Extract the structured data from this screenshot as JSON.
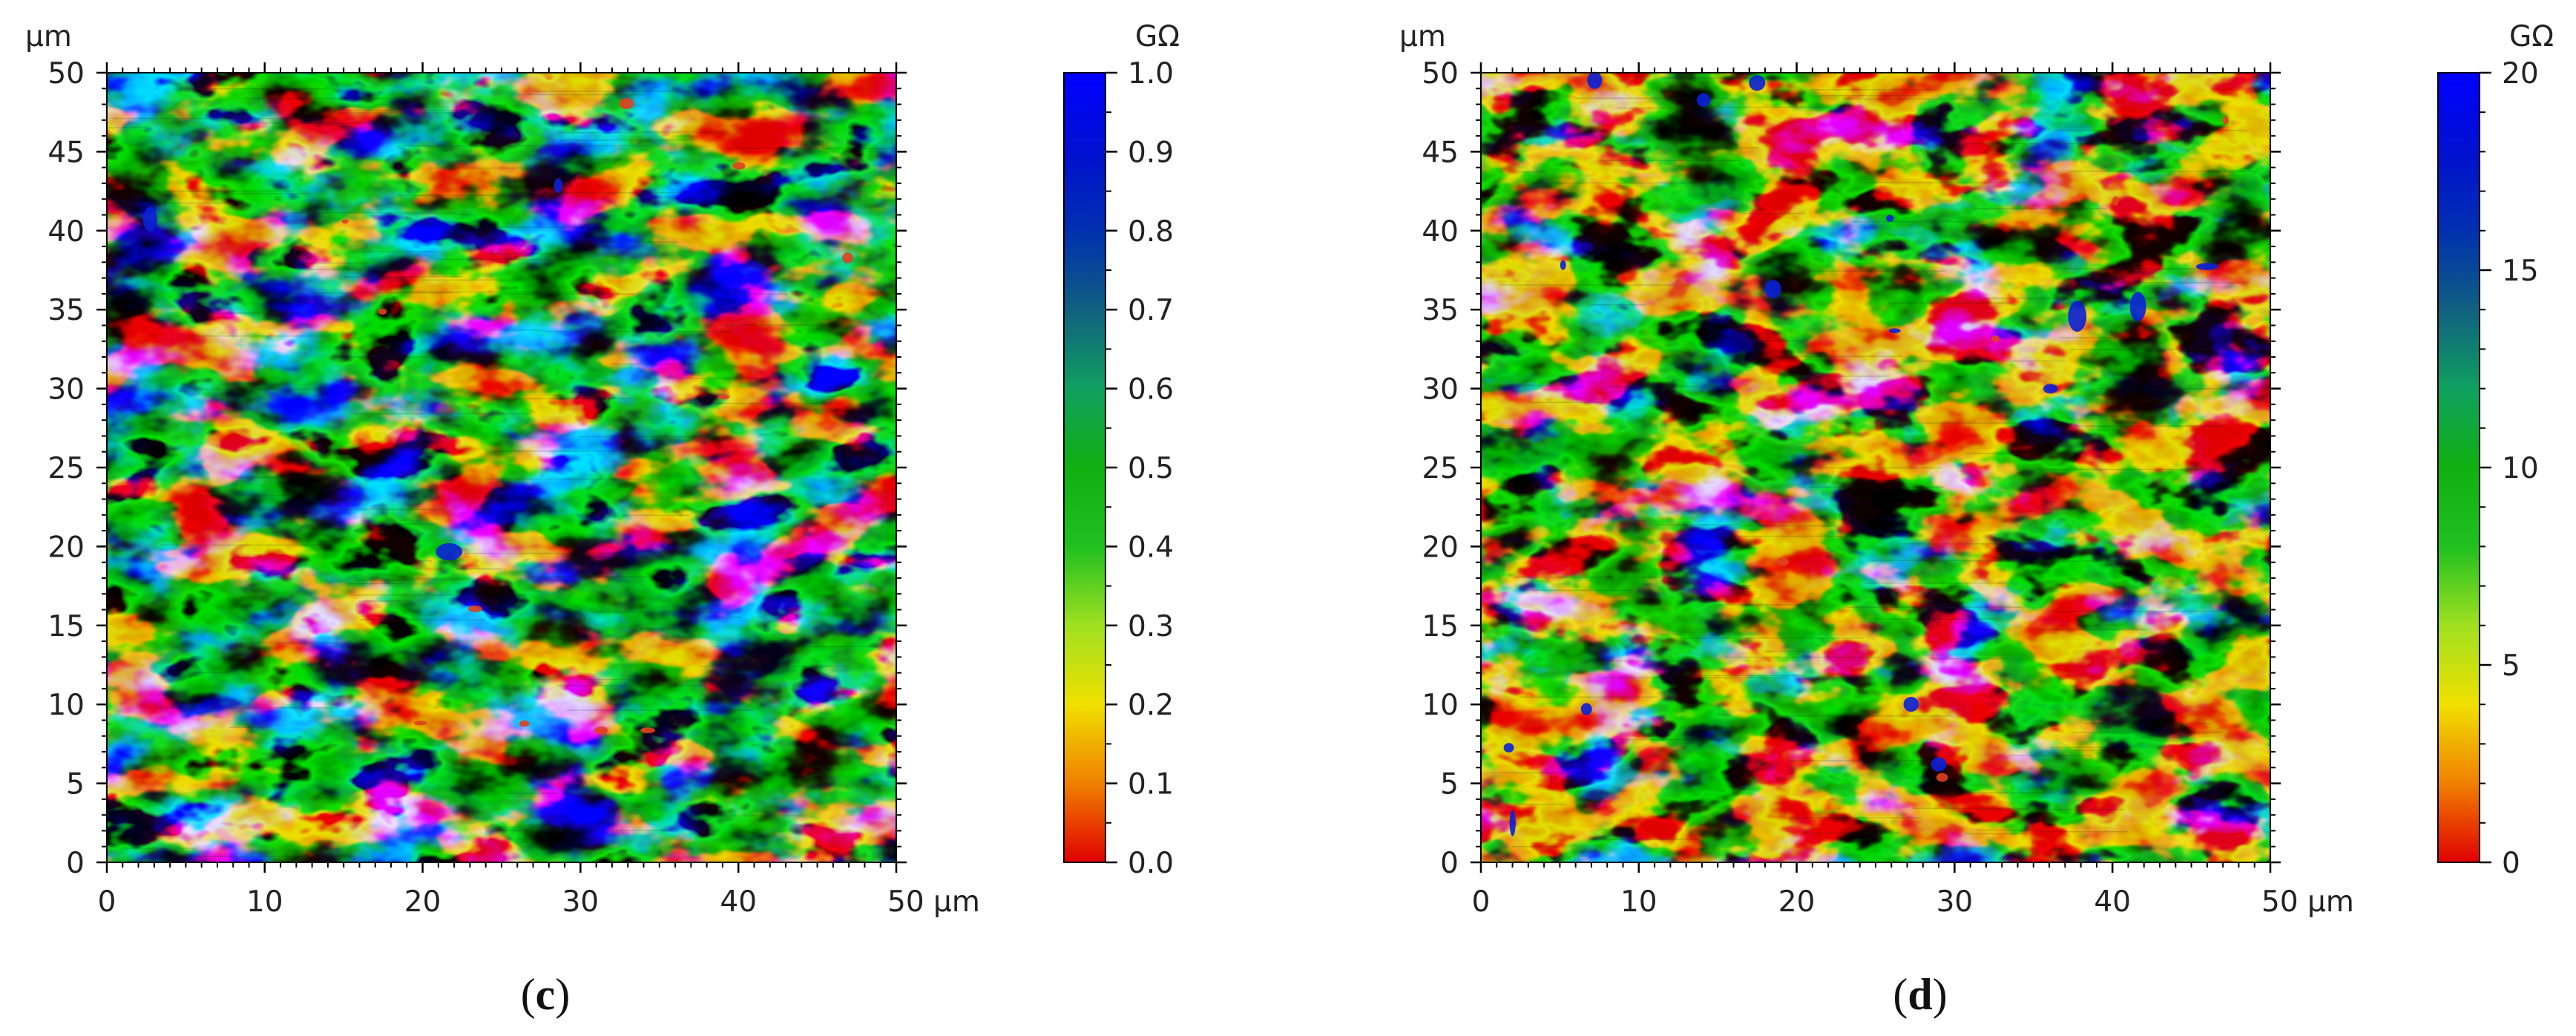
{
  "chart_data": [
    {
      "type": "heatmap",
      "panel_label": {
        "open": "(",
        "letter": "c",
        "close": ")"
      },
      "x_unit": "µm",
      "y_unit": "µm",
      "x_range": [
        0,
        50
      ],
      "y_range": [
        0,
        50
      ],
      "x_ticks": [
        "0",
        "10",
        "20",
        "30",
        "40",
        "50 µm"
      ],
      "y_ticks": [
        "0",
        "5",
        "10",
        "15",
        "20",
        "25",
        "30",
        "35",
        "40",
        "45",
        "50"
      ],
      "colorbar": {
        "unit": "GΩ",
        "range": [
          0.0,
          1.0
        ],
        "ticks": [
          "0.0",
          "0.1",
          "0.2",
          "0.3",
          "0.4",
          "0.5",
          "0.6",
          "0.7",
          "0.8",
          "0.9",
          "1.0"
        ],
        "colors": [
          "#e00000",
          "#f08000",
          "#f0e000",
          "#a0e020",
          "#20c020",
          "#10b010",
          "#10a060",
          "#106080",
          "#0030b0",
          "#0010d0",
          "#0000ff"
        ]
      }
    },
    {
      "type": "heatmap",
      "panel_label": {
        "open": "(",
        "letter": "d",
        "close": ")"
      },
      "x_unit": "µm",
      "y_unit": "µm",
      "x_range": [
        0,
        50
      ],
      "y_range": [
        0,
        50
      ],
      "x_ticks": [
        "0",
        "10",
        "20",
        "30",
        "40",
        "50 µm"
      ],
      "y_ticks": [
        "0",
        "5",
        "10",
        "15",
        "20",
        "25",
        "30",
        "35",
        "40",
        "45",
        "50"
      ],
      "colorbar": {
        "unit": "GΩ",
        "range": [
          0,
          20
        ],
        "ticks": [
          "0",
          "5",
          "10",
          "15",
          "20"
        ],
        "colors": [
          "#e00000",
          "#f08000",
          "#f0e000",
          "#a0e020",
          "#20c020",
          "#10b010",
          "#10a060",
          "#106080",
          "#0030b0",
          "#0010d0",
          "#0000ff"
        ]
      }
    }
  ]
}
